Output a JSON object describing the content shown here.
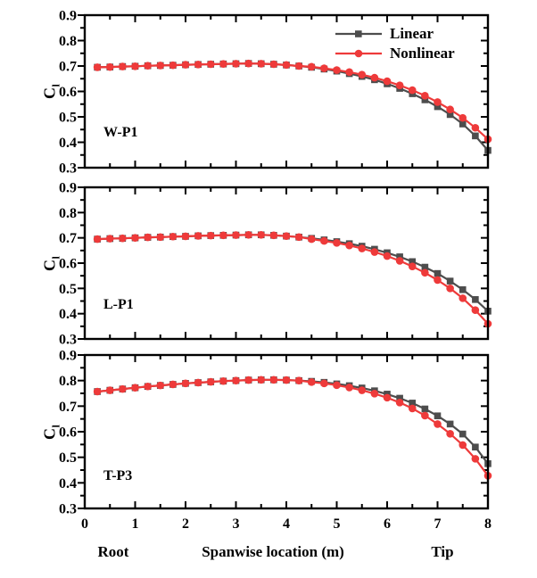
{
  "figure": {
    "background": "#ffffff",
    "text_color": "#000000",
    "x_axis": {
      "label": "Spanwise location (m)",
      "left_annotation": "Root",
      "right_annotation": "Tip",
      "min": 0,
      "max": 8,
      "major_ticks": [
        0,
        1,
        2,
        3,
        4,
        5,
        6,
        7,
        8
      ],
      "minor_step": 0.5
    },
    "y_axis": {
      "label_main": "C",
      "label_sub": "l",
      "min": 0.3,
      "max": 0.9,
      "major_ticks": [
        0.3,
        0.4,
        0.5,
        0.6,
        0.7,
        0.8,
        0.9
      ],
      "minor_step": 0.05
    },
    "legend": {
      "position": "top-right-first-panel",
      "items": [
        {
          "label": "Linear",
          "color": "#4d4d4d",
          "marker": "square"
        },
        {
          "label": "Nonlinear",
          "color": "#ee3a3a",
          "marker": "circle"
        }
      ]
    }
  },
  "chart_data": [
    {
      "type": "line",
      "panel_label": "W-P1",
      "xlabel": "Spanwise location (m)",
      "ylabel": "Cl",
      "xlim": [
        0,
        8
      ],
      "ylim": [
        0.3,
        0.9
      ],
      "grid": false,
      "x": [
        0.25,
        0.5,
        0.75,
        1,
        1.25,
        1.5,
        1.75,
        2,
        2.25,
        2.5,
        2.75,
        3,
        3.25,
        3.5,
        3.75,
        4,
        4.25,
        4.5,
        4.75,
        5,
        5.25,
        5.5,
        5.75,
        6,
        6.25,
        6.5,
        6.75,
        7,
        7.25,
        7.5,
        7.75,
        8
      ],
      "series": [
        {
          "name": "Linear",
          "marker": "square",
          "color": "#4d4d4d",
          "values": [
            0.695,
            0.696,
            0.698,
            0.699,
            0.701,
            0.702,
            0.703,
            0.705,
            0.706,
            0.707,
            0.708,
            0.709,
            0.71,
            0.709,
            0.707,
            0.704,
            0.7,
            0.695,
            0.688,
            0.68,
            0.67,
            0.659,
            0.646,
            0.63,
            0.612,
            0.591,
            0.567,
            0.54,
            0.509,
            0.472,
            0.425,
            0.368
          ]
        },
        {
          "name": "Nonlinear",
          "marker": "circle",
          "color": "#ee3a3a",
          "values": [
            0.695,
            0.696,
            0.698,
            0.699,
            0.701,
            0.702,
            0.703,
            0.705,
            0.706,
            0.707,
            0.708,
            0.709,
            0.71,
            0.709,
            0.707,
            0.704,
            0.7,
            0.697,
            0.691,
            0.684,
            0.676,
            0.666,
            0.654,
            0.64,
            0.624,
            0.605,
            0.583,
            0.558,
            0.529,
            0.496,
            0.457,
            0.412
          ]
        }
      ]
    },
    {
      "type": "line",
      "panel_label": "L-P1",
      "xlabel": "Spanwise location (m)",
      "ylabel": "Cl",
      "xlim": [
        0,
        8
      ],
      "ylim": [
        0.3,
        0.9
      ],
      "grid": false,
      "x": [
        0.25,
        0.5,
        0.75,
        1,
        1.25,
        1.5,
        1.75,
        2,
        2.25,
        2.5,
        2.75,
        3,
        3.25,
        3.5,
        3.75,
        4,
        4.25,
        4.5,
        4.75,
        5,
        5.25,
        5.5,
        5.75,
        6,
        6.25,
        6.5,
        6.75,
        7,
        7.25,
        7.5,
        7.75,
        8
      ],
      "series": [
        {
          "name": "Linear",
          "marker": "square",
          "color": "#4d4d4d",
          "values": [
            0.695,
            0.697,
            0.698,
            0.7,
            0.702,
            0.703,
            0.705,
            0.706,
            0.708,
            0.709,
            0.71,
            0.711,
            0.712,
            0.712,
            0.71,
            0.707,
            0.703,
            0.698,
            0.692,
            0.685,
            0.677,
            0.667,
            0.655,
            0.641,
            0.625,
            0.606,
            0.584,
            0.559,
            0.529,
            0.495,
            0.456,
            0.41
          ]
        },
        {
          "name": "Nonlinear",
          "marker": "circle",
          "color": "#ee3a3a",
          "values": [
            0.695,
            0.697,
            0.698,
            0.7,
            0.702,
            0.703,
            0.705,
            0.706,
            0.708,
            0.709,
            0.71,
            0.711,
            0.712,
            0.712,
            0.71,
            0.707,
            0.703,
            0.695,
            0.688,
            0.68,
            0.67,
            0.658,
            0.644,
            0.628,
            0.609,
            0.587,
            0.562,
            0.533,
            0.5,
            0.461,
            0.414,
            0.36
          ]
        }
      ]
    },
    {
      "type": "line",
      "panel_label": "T-P3",
      "xlabel": "Spanwise location (m)",
      "ylabel": "Cl",
      "xlim": [
        0,
        8
      ],
      "ylim": [
        0.3,
        0.9
      ],
      "grid": false,
      "x": [
        0.25,
        0.5,
        0.75,
        1,
        1.25,
        1.5,
        1.75,
        2,
        2.25,
        2.5,
        2.75,
        3,
        3.25,
        3.5,
        3.75,
        4,
        4.25,
        4.5,
        4.75,
        5,
        5.25,
        5.5,
        5.75,
        6,
        6.25,
        6.5,
        6.75,
        7,
        7.25,
        7.5,
        7.75,
        8
      ],
      "series": [
        {
          "name": "Linear",
          "marker": "square",
          "color": "#4d4d4d",
          "values": [
            0.757,
            0.762,
            0.767,
            0.772,
            0.777,
            0.781,
            0.785,
            0.789,
            0.792,
            0.795,
            0.798,
            0.8,
            0.802,
            0.803,
            0.803,
            0.802,
            0.8,
            0.797,
            0.793,
            0.787,
            0.78,
            0.771,
            0.76,
            0.747,
            0.731,
            0.712,
            0.689,
            0.662,
            0.63,
            0.591,
            0.54,
            0.475
          ]
        },
        {
          "name": "Nonlinear",
          "marker": "circle",
          "color": "#ee3a3a",
          "values": [
            0.757,
            0.762,
            0.767,
            0.772,
            0.777,
            0.781,
            0.785,
            0.789,
            0.792,
            0.795,
            0.798,
            0.8,
            0.802,
            0.803,
            0.803,
            0.802,
            0.8,
            0.794,
            0.789,
            0.782,
            0.773,
            0.762,
            0.749,
            0.733,
            0.714,
            0.691,
            0.663,
            0.63,
            0.592,
            0.548,
            0.494,
            0.428
          ]
        }
      ]
    }
  ]
}
